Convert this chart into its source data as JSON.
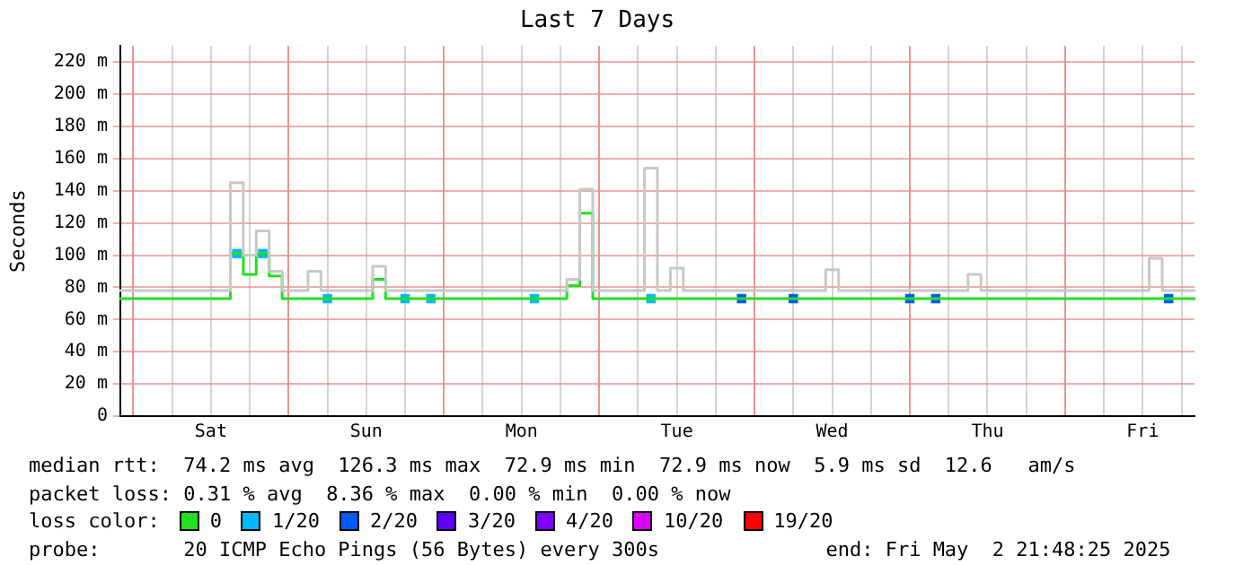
{
  "chart_data": {
    "type": "step",
    "title": "Last 7 Days",
    "ylabel": "Seconds",
    "legend_title": "loss color:",
    "legend": "bottom",
    "grid": true,
    "categories": [
      null,
      null,
      null,
      null,
      null,
      null,
      null,
      "Sat",
      null,
      null,
      null,
      null,
      null,
      null,
      null,
      null,
      null,
      null,
      null,
      "Sun",
      null,
      null,
      null,
      null,
      null,
      null,
      null,
      null,
      null,
      null,
      null,
      "Mon",
      null,
      null,
      null,
      null,
      null,
      null,
      null,
      null,
      null,
      null,
      null,
      "Tue",
      null,
      null,
      null,
      null,
      null,
      null,
      null,
      null,
      null,
      null,
      null,
      "Wed",
      null,
      null,
      null,
      null,
      null,
      null,
      null,
      null,
      null,
      null,
      null,
      "Thu",
      null,
      null,
      null,
      null,
      null,
      null,
      null,
      null,
      null,
      null,
      null,
      "Fri",
      null,
      null,
      null,
      null
    ],
    "ylim": [
      0,
      230
    ],
    "yticks": [
      0,
      {
        "value": 20,
        "label": "20 m"
      },
      {
        "value": 40,
        "label": "40 m"
      },
      {
        "value": 60,
        "label": "60 m"
      },
      {
        "value": 80,
        "label": "80 m"
      },
      {
        "value": 100,
        "label": "100 m"
      },
      {
        "value": 120,
        "label": "120 m"
      },
      {
        "value": 140,
        "label": "140 m"
      },
      {
        "value": 160,
        "label": "160 m"
      },
      {
        "value": 180,
        "label": "180 m"
      },
      {
        "value": 200,
        "label": "200 m"
      },
      {
        "value": 220,
        "label": "220 m"
      }
    ],
    "series": [
      {
        "color": "#c8c8c8",
        "values": [
          78,
          78,
          78,
          78,
          78,
          78,
          78,
          78,
          78,
          145,
          100,
          115,
          90,
          78,
          78,
          90,
          78,
          78,
          78,
          78,
          93,
          78,
          78,
          78,
          78,
          78,
          78,
          78,
          78,
          78,
          78,
          78,
          78,
          78,
          78,
          85,
          141,
          78,
          78,
          78,
          78,
          154,
          78,
          92,
          78,
          78,
          78,
          78,
          78,
          78,
          78,
          78,
          78,
          78,
          78,
          91,
          78,
          78,
          78,
          78,
          78,
          78,
          78,
          78,
          78,
          78,
          88,
          78,
          78,
          78,
          78,
          78,
          78,
          78,
          78,
          78,
          78,
          78,
          78,
          78,
          98,
          78,
          78,
          78
        ]
      },
      {
        "name": "0",
        "color": "#20e020",
        "values": [
          73,
          73,
          73,
          73,
          73,
          73,
          73,
          73,
          73,
          101,
          88,
          101,
          87,
          73,
          73,
          73,
          73,
          73,
          73,
          73,
          85,
          73,
          73,
          73,
          73,
          73,
          73,
          73,
          73,
          73,
          73,
          73,
          73,
          73,
          73,
          81,
          126,
          73,
          73,
          73,
          73,
          73,
          73,
          73,
          73,
          73,
          73,
          73,
          73,
          73,
          73,
          73,
          73,
          73,
          73,
          73,
          73,
          73,
          73,
          73,
          73,
          73,
          73,
          73,
          73,
          73,
          73,
          73,
          73,
          73,
          73,
          73,
          73,
          73,
          73,
          73,
          73,
          73,
          73,
          73,
          73,
          73,
          73,
          73
        ]
      },
      {
        "name": "1/20",
        "type": "scatter",
        "marker": "square",
        "color": "#00b8ff",
        "values": [
          null,
          null,
          null,
          null,
          null,
          null,
          null,
          null,
          null,
          101,
          null,
          101,
          null,
          null,
          null,
          null,
          73,
          null,
          null,
          null,
          null,
          null,
          73,
          null,
          73,
          null,
          null,
          null,
          null,
          null,
          null,
          null,
          73,
          null,
          null,
          null,
          null,
          null,
          null,
          null,
          null,
          73,
          null,
          null,
          null,
          null,
          null,
          null,
          null,
          null,
          null,
          null,
          null,
          null,
          null,
          null,
          null,
          null,
          null,
          null,
          null,
          null,
          null,
          null,
          null,
          null,
          null,
          null,
          null,
          null,
          null,
          null,
          null,
          null,
          null,
          null,
          null,
          null,
          null,
          null,
          null,
          null,
          null,
          null
        ]
      },
      {
        "name": "2/20",
        "type": "scatter",
        "marker": "square",
        "color": "#0059ff",
        "values": [
          null,
          null,
          null,
          null,
          null,
          null,
          null,
          null,
          null,
          null,
          null,
          null,
          null,
          null,
          null,
          null,
          null,
          null,
          null,
          null,
          null,
          null,
          null,
          null,
          null,
          null,
          null,
          null,
          null,
          null,
          null,
          null,
          null,
          null,
          null,
          null,
          null,
          null,
          null,
          null,
          null,
          null,
          null,
          null,
          null,
          null,
          null,
          null,
          73,
          null,
          null,
          null,
          73,
          null,
          null,
          null,
          null,
          null,
          null,
          null,
          null,
          73,
          null,
          73,
          null,
          null,
          null,
          null,
          null,
          null,
          null,
          null,
          null,
          null,
          null,
          null,
          null,
          null,
          null,
          null,
          null,
          73,
          null,
          null
        ]
      },
      {
        "name": "3/20",
        "type": "scatter",
        "marker": "square",
        "color": "#5e00ff",
        "values": [
          null,
          null,
          null,
          null,
          null,
          null,
          null,
          null,
          null,
          null,
          null,
          null,
          null,
          null,
          null,
          null,
          null,
          null,
          null,
          null,
          null,
          null,
          null,
          null,
          null,
          null,
          null,
          null,
          null,
          null,
          null,
          null,
          null,
          null,
          null,
          null,
          null,
          null,
          null,
          null,
          null,
          null,
          null,
          null,
          null,
          null,
          null,
          null,
          null,
          null,
          null,
          null,
          null,
          null,
          null,
          null,
          null,
          null,
          null,
          null,
          null,
          null,
          null,
          null,
          null,
          null,
          null,
          null,
          null,
          null,
          null,
          null,
          null,
          null,
          null,
          null,
          null,
          null,
          null,
          null,
          null,
          null,
          null,
          null
        ]
      },
      {
        "name": "4/20",
        "type": "scatter",
        "marker": "square",
        "color": "#7e00ff",
        "values": [
          null,
          null,
          null,
          null,
          null,
          null,
          null,
          null,
          null,
          null,
          null,
          null,
          null,
          null,
          null,
          null,
          null,
          null,
          null,
          null,
          null,
          null,
          null,
          null,
          null,
          null,
          null,
          null,
          null,
          null,
          null,
          null,
          null,
          null,
          null,
          null,
          null,
          null,
          null,
          null,
          null,
          null,
          null,
          null,
          null,
          null,
          null,
          null,
          null,
          null,
          null,
          null,
          null,
          null,
          null,
          null,
          null,
          null,
          null,
          null,
          null,
          null,
          null,
          null,
          null,
          null,
          null,
          null,
          null,
          null,
          null,
          null,
          null,
          null,
          null,
          null,
          null,
          null,
          null,
          null,
          null,
          null,
          null,
          null
        ]
      },
      {
        "name": "10/20",
        "type": "scatter",
        "marker": "square",
        "color": "#dd00ff",
        "values": [
          null,
          null,
          null,
          null,
          null,
          null,
          null,
          null,
          null,
          null,
          null,
          null,
          null,
          null,
          null,
          null,
          null,
          null,
          null,
          null,
          null,
          null,
          null,
          null,
          null,
          null,
          null,
          null,
          null,
          null,
          null,
          null,
          null,
          null,
          null,
          null,
          null,
          null,
          null,
          null,
          null,
          null,
          null,
          null,
          null,
          null,
          null,
          null,
          null,
          null,
          null,
          null,
          null,
          null,
          null,
          null,
          null,
          null,
          null,
          null,
          null,
          null,
          null,
          null,
          null,
          null,
          null,
          null,
          null,
          null,
          null,
          null,
          null,
          null,
          null,
          null,
          null,
          null,
          null,
          null,
          null,
          null,
          null,
          null
        ]
      },
      {
        "name": "19/20",
        "type": "scatter",
        "marker": "square",
        "color": "#ff0000",
        "values": [
          null,
          null,
          null,
          null,
          null,
          null,
          null,
          null,
          null,
          null,
          null,
          null,
          null,
          null,
          null,
          null,
          null,
          null,
          null,
          null,
          null,
          null,
          null,
          null,
          null,
          null,
          null,
          null,
          null,
          null,
          null,
          null,
          null,
          null,
          null,
          null,
          null,
          null,
          null,
          null,
          null,
          null,
          null,
          null,
          null,
          null,
          null,
          null,
          null,
          null,
          null,
          null,
          null,
          null,
          null,
          null,
          null,
          null,
          null,
          null,
          null,
          null,
          null,
          null,
          null,
          null,
          null,
          null,
          null,
          null,
          null,
          null,
          null,
          null,
          null,
          null,
          null,
          null,
          null,
          null,
          null,
          null,
          null,
          null
        ]
      }
    ],
    "annotations": [
      "median rtt:  74.2 ms avg  126.3 ms max  72.9 ms min  72.9 ms now  5.9 ms sd  12.6   am/s",
      "packet loss: 0.31 % avg  8.36 % max  0.00 % min  0.00 % now",
      "probe:       20 ICMP Echo Pings (56 Bytes) every 300s              end: Fri May  2 21:48:25 2025"
    ]
  }
}
